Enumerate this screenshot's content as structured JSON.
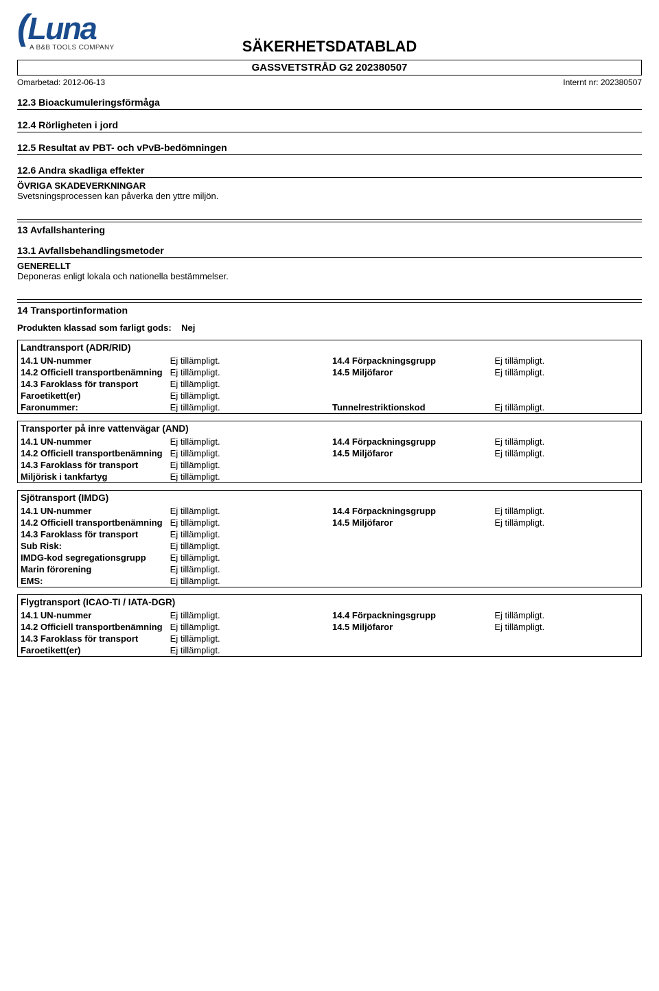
{
  "logo": {
    "brand": "Luna",
    "tagline": "A B&B TOOLS COMPANY"
  },
  "doc_title": "SÄKERHETSDATABLAD",
  "product_box": "GASSVETSTRÅD G2 202380507",
  "meta": {
    "left": "Omarbetad: 2012-06-13",
    "right": "Internt nr: 202380507"
  },
  "sections_simple": {
    "s12_3": "12.3 Bioackumuleringsförmåga",
    "s12_4": "12.4 Rörligheten i jord",
    "s12_5": "12.5 Resultat av PBT- och vPvB-bedömningen"
  },
  "s12_6": {
    "title": "12.6 Andra skadliga effekter",
    "sub": "ÖVRIGA SKADEVERKNINGAR",
    "text": "Svetsningsprocessen kan påverka den yttre miljön."
  },
  "s13": {
    "major": "13 Avfallshantering",
    "s13_1": "13.1 Avfallsbehandlingsmetoder",
    "sub": "GENERELLT",
    "text": "Deponeras enligt lokala och nationella bestämmelser."
  },
  "s14": {
    "major": "14 Transportinformation",
    "classified_label": "Produkten klassad som farligt gods:",
    "classified_value": "Nej"
  },
  "labels": {
    "un": "14.1 UN-nummer",
    "name": "14.2 Officiell transportbenämning",
    "class": "14.3 Faroklass för transport",
    "pack": "14.4 Förpackningsgrupp",
    "env": "14.5 Miljöfaror",
    "faroetikett": "Faroetikett(er)",
    "faronummer": "Faronummer:",
    "tunnel": "Tunnelrestriktionskod",
    "tank": "Miljörisk i tankfartyg",
    "subrisk": "Sub Risk:",
    "imdg": "IMDG-kod segregationsgrupp",
    "marine": "Marin förorening",
    "ems": "EMS:"
  },
  "na": "Ej tillämpligt.",
  "modes": {
    "adr": "Landtransport (ADR/RID)",
    "and": "Transporter på inre vattenvägar (AND)",
    "imdg": "Sjötransport (IMDG)",
    "air": "Flygtransport (ICAO-TI / IATA-DGR)"
  }
}
